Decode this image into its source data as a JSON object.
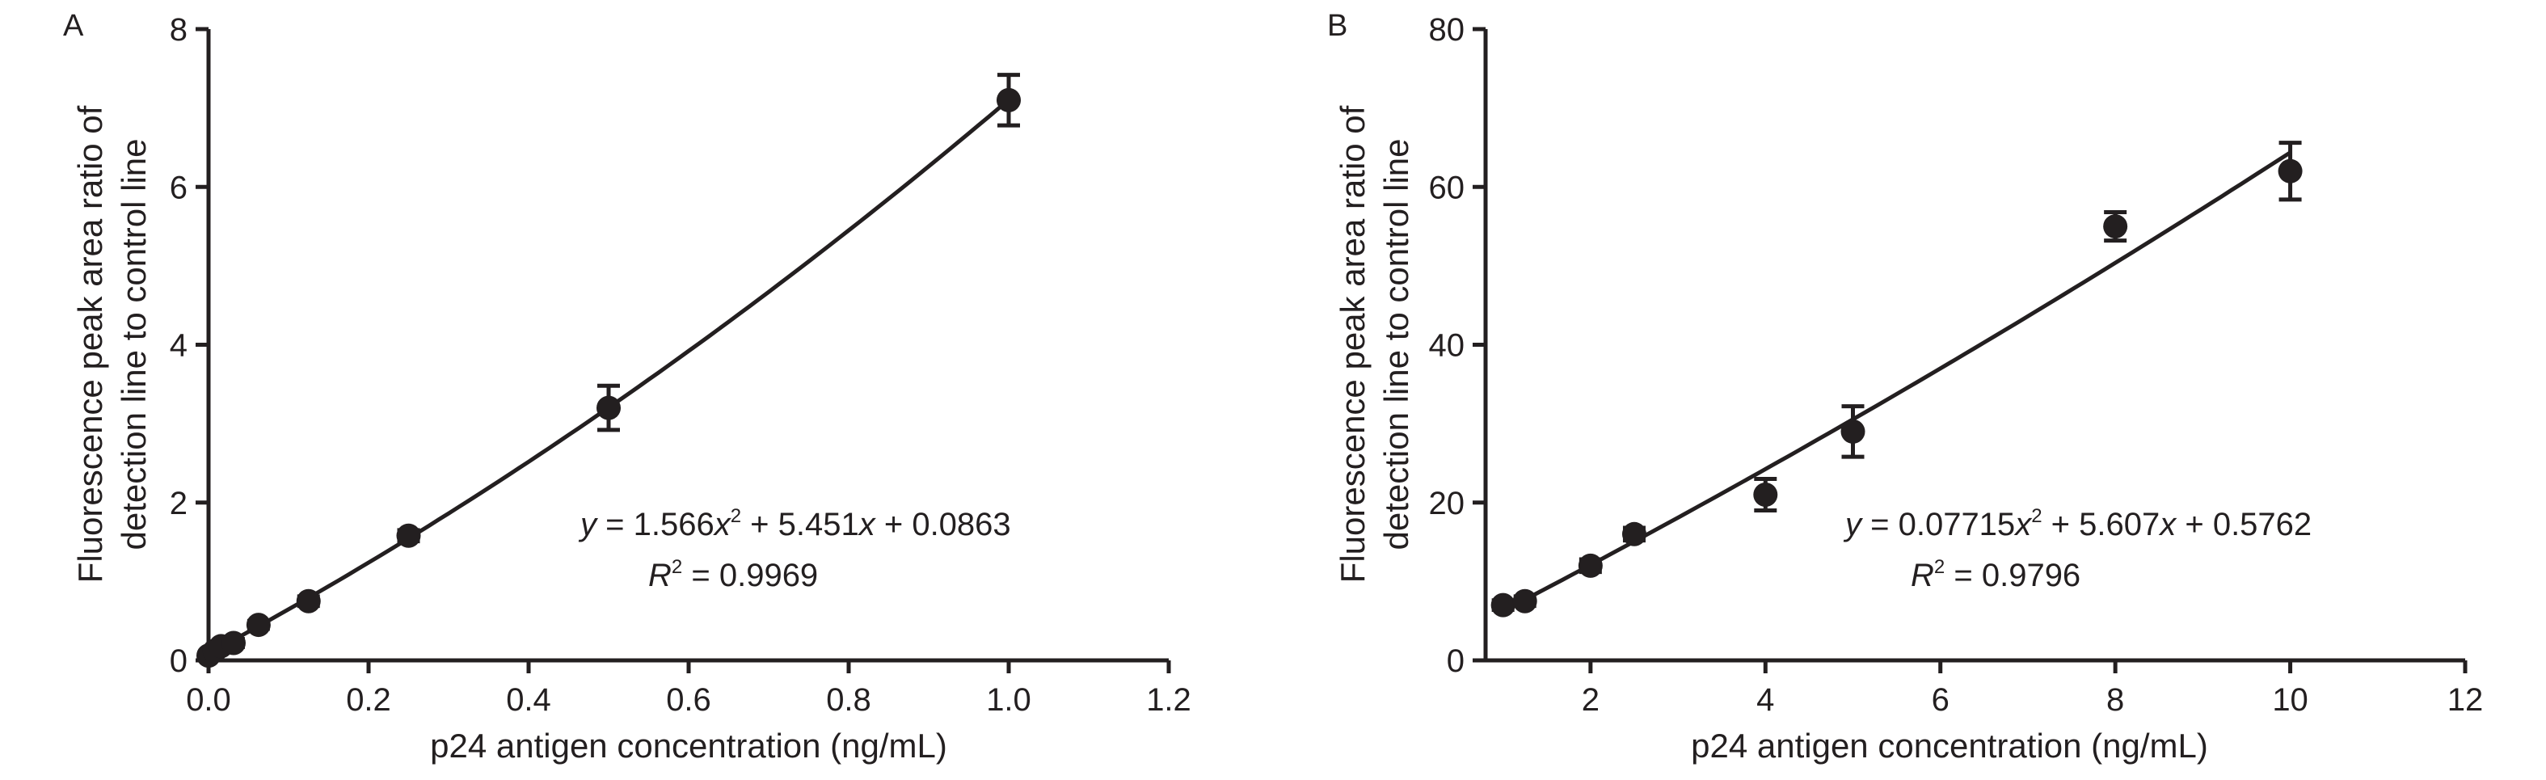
{
  "chart_data": [
    {
      "panel_label": "A",
      "type": "scatter",
      "xlabel": "p24 antigen concentration (ng/mL)",
      "ylabel_lines": [
        "Fluorescence peak area ratio of",
        "detection line to control line"
      ],
      "xlim": [
        0,
        1.2
      ],
      "ylim": [
        0,
        8
      ],
      "xticks": [
        "0.0",
        "0.2",
        "0.4",
        "0.6",
        "0.8",
        "1.0",
        "1.2"
      ],
      "yticks": [
        "0",
        "2",
        "4",
        "6",
        "8"
      ],
      "xtick_values": [
        0,
        0.2,
        0.4,
        0.6,
        0.8,
        1.0,
        1.2
      ],
      "ytick_values": [
        0,
        2,
        4,
        6,
        8
      ],
      "points": [
        {
          "x": 0.0,
          "y": 0.06,
          "err": 0.03
        },
        {
          "x": 0.0078,
          "y": 0.12,
          "err": 0.03
        },
        {
          "x": 0.0156,
          "y": 0.18,
          "err": 0.04
        },
        {
          "x": 0.0313,
          "y": 0.22,
          "err": 0.05
        },
        {
          "x": 0.0625,
          "y": 0.45,
          "err": 0.05
        },
        {
          "x": 0.125,
          "y": 0.75,
          "err": 0.06
        },
        {
          "x": 0.25,
          "y": 1.58,
          "err": 0.07
        },
        {
          "x": 0.5,
          "y": 3.2,
          "err": 0.28
        },
        {
          "x": 1.0,
          "y": 7.1,
          "err": 0.32
        }
      ],
      "fit": {
        "a": 1.566,
        "b": 5.451,
        "c": 0.0863,
        "x_range": [
          0,
          1.0
        ]
      },
      "equation": {
        "y_var": "y",
        "p1": " = 1.566",
        "x_var": "x",
        "sup": "2",
        "p2": " + 5.451",
        "x_var2": "x",
        "p3": " + 0.0863"
      },
      "r2": {
        "r_var": "R",
        "sup": "2",
        "value": " = 0.9969"
      }
    },
    {
      "panel_label": "B",
      "type": "scatter",
      "xlabel": "p24 antigen concentration (ng/mL)",
      "ylabel_lines": [
        "Fluorescence peak area ratio of",
        "detection line to control line"
      ],
      "xlim": [
        0.8,
        12
      ],
      "ylim": [
        0,
        80
      ],
      "xticks": [
        "2",
        "4",
        "6",
        "8",
        "10",
        "12"
      ],
      "yticks": [
        "0",
        "20",
        "40",
        "60",
        "80"
      ],
      "xtick_values": [
        2,
        4,
        6,
        8,
        10,
        12
      ],
      "ytick_values": [
        0,
        20,
        40,
        60,
        80
      ],
      "points": [
        {
          "x": 1.0,
          "y": 7.0,
          "err": 0.6
        },
        {
          "x": 1.25,
          "y": 7.5,
          "err": 0.6
        },
        {
          "x": 2.0,
          "y": 12.0,
          "err": 0.8
        },
        {
          "x": 2.5,
          "y": 16.0,
          "err": 0.8
        },
        {
          "x": 4.0,
          "y": 21.0,
          "err": 2.0
        },
        {
          "x": 5.0,
          "y": 29.0,
          "err": 3.2
        },
        {
          "x": 8.0,
          "y": 55.0,
          "err": 1.8
        },
        {
          "x": 10.0,
          "y": 62.0,
          "err": 3.6
        }
      ],
      "fit": {
        "a": 0.07715,
        "b": 5.607,
        "c": 0.5762,
        "x_range": [
          1.0,
          10.0
        ]
      },
      "equation": {
        "y_var": "y",
        "p1": " = 0.07715",
        "x_var": "x",
        "sup": "2",
        "p2": " + 5.607",
        "x_var2": "x",
        "p3": " + 0.5762"
      },
      "r2": {
        "r_var": "R",
        "sup": "2",
        "value": " = 0.9796"
      }
    }
  ]
}
